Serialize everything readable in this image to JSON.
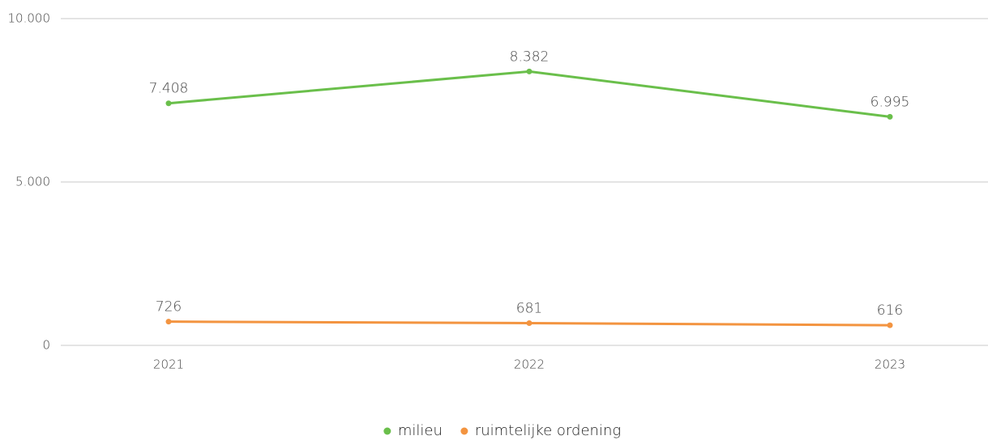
{
  "chart_data": {
    "type": "line",
    "categories": [
      "2021",
      "2022",
      "2023"
    ],
    "series": [
      {
        "name": "milieu",
        "color": "#6abf4b",
        "values": [
          7408,
          8382,
          6995
        ],
        "value_labels": [
          "7.408",
          "8.382",
          "6.995"
        ]
      },
      {
        "name": "ruimtelijke ordening",
        "color": "#f39440",
        "values": [
          726,
          681,
          616
        ]
      }
    ],
    "ylim": [
      0,
      10000
    ],
    "yticks": [
      0,
      {
        "value": 5000,
        "label": "5.000"
      },
      {
        "value": 10000,
        "label": "10.000"
      }
    ],
    "grid": true,
    "legend": "bottom"
  }
}
